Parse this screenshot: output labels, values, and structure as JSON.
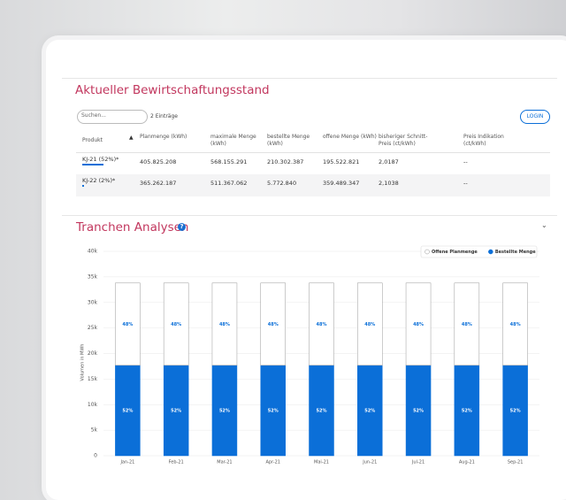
{
  "header": {
    "title": "Aktueller Bewirtschaftungsstand",
    "search_placeholder": "Suchen...",
    "entries": "2 Einträge",
    "login": "LOGIN"
  },
  "table": {
    "columns": [
      "Produkt",
      "Planmenge (kWh)",
      "maximale Menge (kWh)",
      "bestellte Menge (kWh)",
      "offene Menge (kWh)",
      "bisheriger Schnitt-Preis (ct/kWh)",
      "Preis Indikation (ct/kWh)"
    ],
    "rows": [
      [
        "KJ-21 (52%)*",
        "405.825.208",
        "568.155.291",
        "210.302.387",
        "195.522.821",
        "2,0187",
        "--"
      ],
      [
        "KJ-22 (2%)*",
        "365.262.187",
        "511.367.062",
        "5.772.840",
        "359.489.347",
        "2,1038",
        "--"
      ]
    ]
  },
  "section_title": "Tranchen Analysen",
  "chart_data": {
    "type": "bar",
    "stacked": true,
    "categories": [
      "Jan-21",
      "Feb-21",
      "Mar-21",
      "Apr-21",
      "Mai-21",
      "Jun-21",
      "Jul-21",
      "Aug-21",
      "Sep-21"
    ],
    "series": [
      {
        "name": "Bestellte Menge",
        "color": "#0b6fd8",
        "values": [
          17700,
          17700,
          17700,
          17700,
          17700,
          17700,
          17700,
          17700,
          17700
        ],
        "value_labels": [
          "52%",
          "52%",
          "52%",
          "52%",
          "52%",
          "52%",
          "52%",
          "52%",
          "52%"
        ]
      },
      {
        "name": "Offene Planmenge",
        "color": "#ffffff",
        "values": [
          16100,
          16100,
          16100,
          16100,
          16100,
          16100,
          16100,
          16100,
          16100
        ],
        "value_labels": [
          "48%",
          "48%",
          "48%",
          "48%",
          "48%",
          "48%",
          "48%",
          "48%",
          "48%"
        ]
      }
    ],
    "y_label": "Volumen in MWh",
    "ylim": [
      0,
      40000
    ],
    "yticks": [
      0,
      {
        "value": 5000,
        "label": "5k"
      },
      {
        "value": 10000,
        "label": "10k"
      },
      {
        "value": 15000,
        "label": "15k"
      },
      {
        "value": 20000,
        "label": "20k"
      },
      {
        "value": 25000,
        "label": "25k"
      },
      {
        "value": 30000,
        "label": "30k"
      },
      {
        "value": 35000,
        "label": "35k"
      },
      {
        "value": 40000,
        "label": "40k"
      }
    ],
    "grid": true,
    "legend": "top-right"
  }
}
